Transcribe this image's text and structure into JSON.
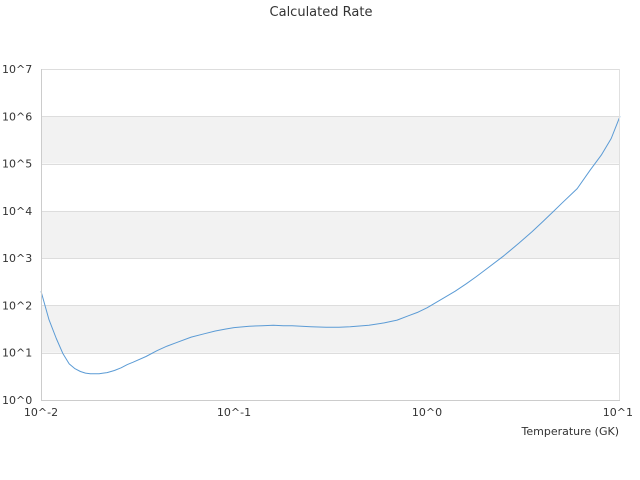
{
  "chart_data": {
    "type": "line",
    "title": "Calculated Rate",
    "xlabel": "Temperature (GK)",
    "ylabel": "",
    "x_scale": "log",
    "y_scale": "log",
    "xlim": [
      0.01,
      10
    ],
    "ylim": [
      1,
      10000000
    ],
    "x_ticks": [
      {
        "label": "10^-2",
        "value": 0.01
      },
      {
        "label": "10^-1",
        "value": 0.1
      },
      {
        "label": "10^0",
        "value": 1
      },
      {
        "label": "10^1",
        "value": 10
      }
    ],
    "y_ticks": [
      {
        "label": "10^0",
        "value": 1
      },
      {
        "label": "10^1",
        "value": 10
      },
      {
        "label": "10^2",
        "value": 100
      },
      {
        "label": "10^3",
        "value": 1000
      },
      {
        "label": "10^4",
        "value": 10000
      },
      {
        "label": "10^5",
        "value": 100000
      },
      {
        "label": "10^6",
        "value": 1000000
      },
      {
        "label": "10^7",
        "value": 10000000
      }
    ],
    "grid": true,
    "band_colors": [
      "#ffffff",
      "#f2f2f2"
    ],
    "series": [
      {
        "color": "#5b9bd5",
        "x": [
          0.01,
          0.011,
          0.012,
          0.013,
          0.014,
          0.015,
          0.016,
          0.017,
          0.018,
          0.019,
          0.02,
          0.021,
          0.022,
          0.024,
          0.026,
          0.028,
          0.03,
          0.035,
          0.04,
          0.045,
          0.05,
          0.06,
          0.07,
          0.08,
          0.09,
          0.1,
          0.12,
          0.14,
          0.16,
          0.18,
          0.2,
          0.25,
          0.3,
          0.35,
          0.4,
          0.5,
          0.6,
          0.7,
          0.8,
          0.9,
          1.0,
          1.2,
          1.4,
          1.6,
          1.8,
          2.0,
          2.5,
          3.0,
          3.5,
          4.0,
          4.5,
          5.0,
          6.0,
          7.0,
          8.0,
          9.0,
          10.0
        ],
        "y": [
          200,
          50,
          20,
          9.5,
          5.8,
          4.6,
          4.0,
          3.7,
          3.6,
          3.6,
          3.6,
          3.7,
          3.8,
          4.2,
          4.8,
          5.6,
          6.3,
          8.3,
          11.1,
          13.8,
          16.2,
          21.4,
          25.1,
          28.8,
          31.6,
          33.9,
          36.3,
          37.2,
          38.0,
          37.2,
          37.2,
          35.5,
          34.7,
          34.7,
          35.5,
          38.0,
          42.7,
          49.0,
          60.3,
          72.4,
          89.1,
          138,
          200,
          288,
          407,
          562,
          1120,
          2090,
          3630,
          6030,
          9550,
          14500,
          29500,
          72400,
          151000,
          339000,
          1000000
        ]
      }
    ]
  }
}
